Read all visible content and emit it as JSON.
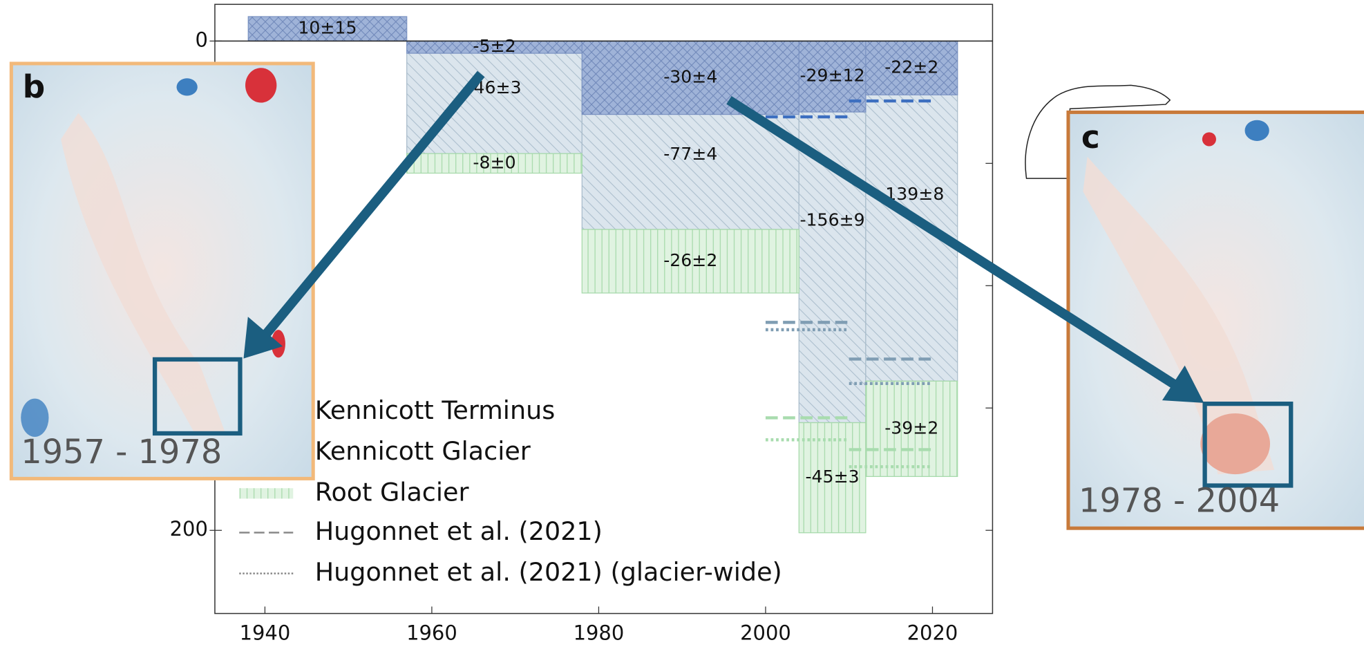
{
  "chart_data": {
    "type": "bar",
    "periods": [
      [
        1938,
        1957
      ],
      [
        1957,
        1978
      ],
      [
        1978,
        2004
      ],
      [
        2004,
        2012
      ],
      [
        2012,
        2023
      ]
    ],
    "series": [
      {
        "name": "Kennicott Terminus",
        "color": "#9fb3d8",
        "hatch": "cross",
        "values": [
          10,
          -5,
          -30,
          -29,
          -22
        ],
        "value_labels": [
          "10±15",
          "-5±2",
          "-30±4",
          "-29±12",
          "-22±2"
        ],
        "reference_color": "#3d6fc0",
        "reference_values": [
          [
            null,
            -31,
            -24.5
          ],
          [
            null,
            null,
            null
          ]
        ]
      },
      {
        "name": "Kennicott Glacier",
        "color": "#dbe5ed",
        "hatch": "diagonal",
        "values": [
          null,
          -46,
          -77,
          -156,
          -139
        ],
        "value_labels": [
          null,
          "-46±3",
          "-77±4",
          "-156±9",
          "-139±8"
        ],
        "reference_color": "#7f9db3",
        "reference_values": [
          [
            null,
            -115,
            -130
          ],
          [
            null,
            -118,
            -140
          ]
        ]
      },
      {
        "name": "Root Glacier",
        "color": "#e0f3e1",
        "hatch": "vertical",
        "stack_on": 1,
        "values": [
          null,
          -8,
          -26,
          -45,
          -39
        ],
        "value_labels": [
          null,
          "-8±0",
          "-26±2",
          "-45±3",
          "-39±2"
        ],
        "reference_color": "#a8dcae",
        "reference_values": [
          [
            null,
            -154,
            -167
          ],
          [
            null,
            -163,
            -174
          ]
        ]
      }
    ],
    "reference_periods": [
      [
        1990,
        2000
      ],
      [
        2000,
        2010
      ],
      [
        2010,
        2020
      ]
    ],
    "reference_lines": [
      {
        "name": "Hugonnet et al. (2021)",
        "dash": "dashed"
      },
      {
        "name": "Hugonnet et al. (2021) (glacier-wide)",
        "dash": "dotted"
      }
    ],
    "xlim": [
      1934,
      2027.2
    ],
    "xticks": [
      1940,
      1960,
      1980,
      2000,
      2020
    ],
    "ylim": [
      -234,
      15
    ],
    "yticks": [
      0,
      {
        "value": -200,
        "label": "200"
      }
    ],
    "yticks_minor": [
      -50,
      -100,
      -150
    ]
  },
  "panels": [
    {
      "letter": "b",
      "period_label": "1957 - 1978"
    },
    {
      "letter": "c",
      "period_label": "1978 - 2004"
    }
  ]
}
